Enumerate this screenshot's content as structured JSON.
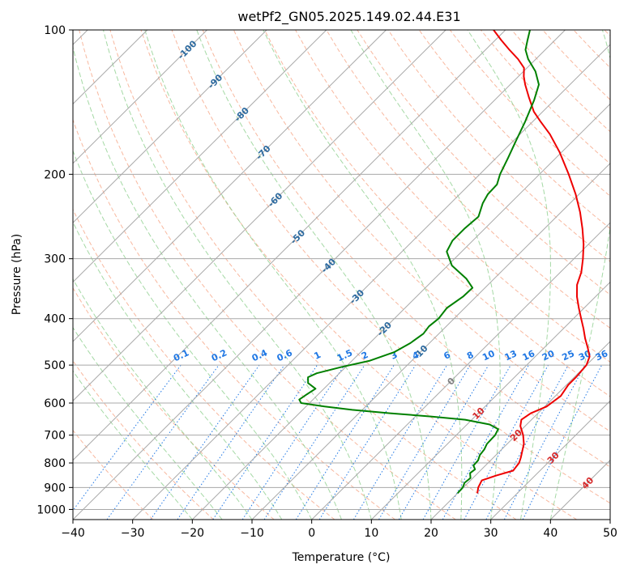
{
  "chart_data": {
    "type": "line",
    "title": "wetPf2_GN05.2025.149.02.44.E31",
    "xlabel": "Temperature (°C)",
    "ylabel": "Pressure (hPa)",
    "xlim": [
      -40,
      50
    ],
    "ylim": [
      1050,
      100
    ],
    "y_scale": "log",
    "x_ticks": [
      "−40",
      "−30",
      "−20",
      "−10",
      "0",
      "10",
      "20",
      "30",
      "40",
      "50"
    ],
    "x_tick_values": [
      -40,
      -30,
      -20,
      -10,
      0,
      10,
      20,
      30,
      40,
      50
    ],
    "y_ticks": [
      "100",
      "200",
      "300",
      "400",
      "500",
      "600",
      "700",
      "800",
      "900",
      "1000"
    ],
    "y_tick_values": [
      100,
      200,
      300,
      400,
      500,
      600,
      700,
      800,
      900,
      1000
    ],
    "grid": true,
    "colors": {
      "temperature": "#ee0000",
      "dewpoint": "#008000",
      "isotherm": "#a8a8a8",
      "dry_adiabat": "#f5a07f",
      "moist_adiabat": "#8fcf8f",
      "mixing_ratio": "#1f77e4",
      "isotherm_label": "#2d6a9f",
      "warm_isotherm_label": "#d62728",
      "zero_label": "#808080"
    },
    "series": [
      {
        "points": [
          {
            "p": 925,
            "t": 23.3
          },
          {
            "p": 900,
            "t": 22.5
          },
          {
            "p": 870,
            "t": 21.9
          },
          {
            "p": 850,
            "t": 23.5
          },
          {
            "p": 830,
            "t": 25.5
          },
          {
            "p": 800,
            "t": 25.2
          },
          {
            "p": 780,
            "t": 24.6
          },
          {
            "p": 760,
            "t": 23.9
          },
          {
            "p": 730,
            "t": 22.8
          },
          {
            "p": 700,
            "t": 21.2
          },
          {
            "p": 670,
            "t": 19.2
          },
          {
            "p": 650,
            "t": 18.3
          },
          {
            "p": 630,
            "t": 18.8
          },
          {
            "p": 610,
            "t": 20.3
          },
          {
            "p": 580,
            "t": 20.9
          },
          {
            "p": 550,
            "t": 20.3
          },
          {
            "p": 530,
            "t": 20.3
          },
          {
            "p": 500,
            "t": 20.0
          },
          {
            "p": 480,
            "t": 19.1
          },
          {
            "p": 460,
            "t": 17.3
          },
          {
            "p": 440,
            "t": 15.3
          },
          {
            "p": 420,
            "t": 13.4
          },
          {
            "p": 400,
            "t": 11.3
          },
          {
            "p": 380,
            "t": 9.1
          },
          {
            "p": 360,
            "t": 6.9
          },
          {
            "p": 340,
            "t": 4.9
          },
          {
            "p": 320,
            "t": 3.5
          },
          {
            "p": 300,
            "t": 1.5
          },
          {
            "p": 280,
            "t": -0.8
          },
          {
            "p": 260,
            "t": -3.6
          },
          {
            "p": 240,
            "t": -6.8
          },
          {
            "p": 220,
            "t": -10.6
          },
          {
            "p": 200,
            "t": -15.1
          },
          {
            "p": 180,
            "t": -20.3
          },
          {
            "p": 165,
            "t": -25.0
          },
          {
            "p": 155,
            "t": -28.8
          },
          {
            "p": 148,
            "t": -31.5
          },
          {
            "p": 138,
            "t": -34.8
          },
          {
            "p": 130,
            "t": -37.5
          },
          {
            "p": 125,
            "t": -39.1
          },
          {
            "p": 120,
            "t": -40.5
          },
          {
            "p": 115,
            "t": -43.0
          },
          {
            "p": 110,
            "t": -46.0
          },
          {
            "p": 105,
            "t": -49.0
          },
          {
            "p": 100,
            "t": -52.0
          }
        ]
      },
      {
        "points": [
          {
            "p": 925,
            "t": 20.0
          },
          {
            "p": 900,
            "t": 19.9
          },
          {
            "p": 880,
            "t": 19.4
          },
          {
            "p": 860,
            "t": 19.6
          },
          {
            "p": 840,
            "t": 18.7
          },
          {
            "p": 825,
            "t": 18.9
          },
          {
            "p": 810,
            "t": 18.0
          },
          {
            "p": 790,
            "t": 17.9
          },
          {
            "p": 770,
            "t": 17.3
          },
          {
            "p": 750,
            "t": 17.1
          },
          {
            "p": 730,
            "t": 16.6
          },
          {
            "p": 700,
            "t": 16.5
          },
          {
            "p": 680,
            "t": 16.0
          },
          {
            "p": 665,
            "t": 13.8
          },
          {
            "p": 650,
            "t": 8.9
          },
          {
            "p": 640,
            "t": 2.6
          },
          {
            "p": 630,
            "t": -4.8
          },
          {
            "p": 620,
            "t": -11.7
          },
          {
            "p": 610,
            "t": -16.9
          },
          {
            "p": 600,
            "t": -21.4
          },
          {
            "p": 590,
            "t": -22.3
          },
          {
            "p": 575,
            "t": -21.9
          },
          {
            "p": 560,
            "t": -21.4
          },
          {
            "p": 545,
            "t": -23.6
          },
          {
            "p": 530,
            "t": -24.6
          },
          {
            "p": 520,
            "t": -23.8
          },
          {
            "p": 505,
            "t": -20.8
          },
          {
            "p": 490,
            "t": -17.1
          },
          {
            "p": 470,
            "t": -14.4
          },
          {
            "p": 450,
            "t": -13.2
          },
          {
            "p": 430,
            "t": -12.6
          },
          {
            "p": 415,
            "t": -12.9
          },
          {
            "p": 400,
            "t": -12.6
          },
          {
            "p": 380,
            "t": -13.0
          },
          {
            "p": 360,
            "t": -12.2
          },
          {
            "p": 345,
            "t": -12.1
          },
          {
            "p": 330,
            "t": -14.7
          },
          {
            "p": 310,
            "t": -19.3
          },
          {
            "p": 290,
            "t": -22.5
          },
          {
            "p": 275,
            "t": -23.4
          },
          {
            "p": 260,
            "t": -23.4
          },
          {
            "p": 245,
            "t": -23.1
          },
          {
            "p": 230,
            "t": -24.6
          },
          {
            "p": 220,
            "t": -25.3
          },
          {
            "p": 210,
            "t": -25.4
          },
          {
            "p": 200,
            "t": -26.6
          },
          {
            "p": 185,
            "t": -28.0
          },
          {
            "p": 170,
            "t": -29.6
          },
          {
            "p": 155,
            "t": -31.3
          },
          {
            "p": 140,
            "t": -33.4
          },
          {
            "p": 130,
            "t": -35.2
          },
          {
            "p": 122,
            "t": -38.0
          },
          {
            "p": 115,
            "t": -41.3
          },
          {
            "p": 110,
            "t": -43.3
          },
          {
            "p": 105,
            "t": -44.6
          },
          {
            "p": 100,
            "t": -45.9
          }
        ]
      }
    ],
    "skew_isotherm_labels": [
      {
        "text": "-100",
        "t": -100
      },
      {
        "text": "-90",
        "t": -90
      },
      {
        "text": "-80",
        "t": -80
      },
      {
        "text": "-70",
        "t": -70
      },
      {
        "text": "-60",
        "t": -60
      },
      {
        "text": "-50",
        "t": -50
      },
      {
        "text": "-40",
        "t": -40
      },
      {
        "text": "-30",
        "t": -30
      },
      {
        "text": "-20",
        "t": -20
      },
      {
        "text": "-10",
        "t": -10
      },
      {
        "text": "0",
        "t": 0
      },
      {
        "text": "10",
        "t": 10
      },
      {
        "text": "20",
        "t": 20
      },
      {
        "text": "30",
        "t": 30
      },
      {
        "text": "40",
        "t": 40
      }
    ],
    "mixing_ratio_labels": [
      "0.1",
      "0.2",
      "0.4",
      "0.6",
      "1",
      "1.5",
      "2",
      "3",
      "4",
      "6",
      "8",
      "10",
      "13",
      "16",
      "20",
      "25",
      "30",
      "36"
    ],
    "mixing_ratio_values": [
      0.1,
      0.2,
      0.4,
      0.6,
      1,
      1.5,
      2,
      3,
      4,
      6,
      8,
      10,
      13,
      16,
      20,
      25,
      30,
      36
    ]
  }
}
